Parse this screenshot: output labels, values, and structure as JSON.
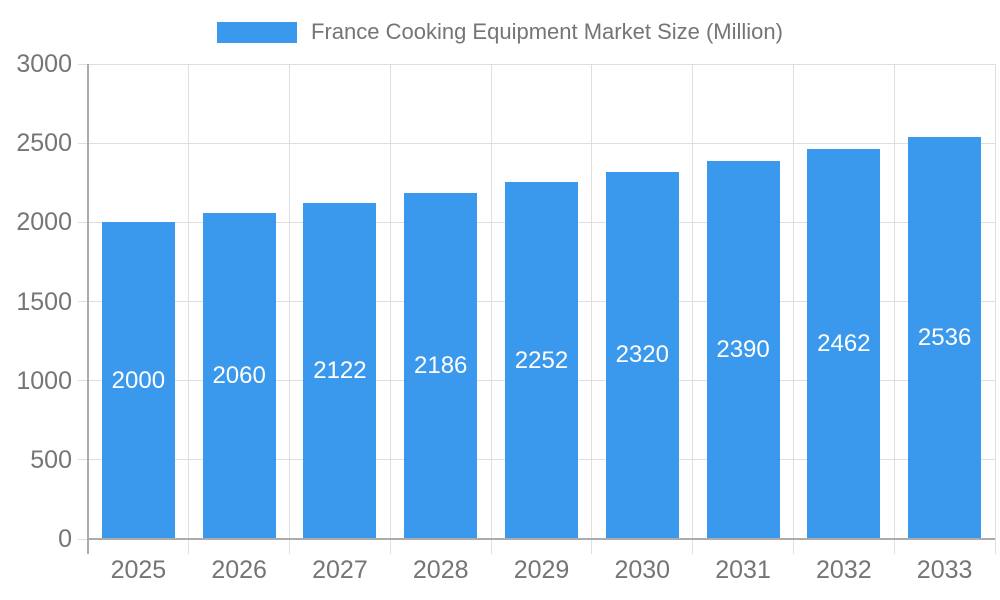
{
  "chart_data": {
    "type": "bar",
    "title": "France Cooking Equipment Market Size (Million)",
    "legend": {
      "position": "top",
      "entries": [
        "France Cooking Equipment Market Size (Million)"
      ]
    },
    "categories": [
      "2025",
      "2026",
      "2027",
      "2028",
      "2029",
      "2030",
      "2031",
      "2032",
      "2033"
    ],
    "values": [
      2000,
      2060,
      2122,
      2186,
      2252,
      2320,
      2390,
      2462,
      2536
    ],
    "xlabel": "",
    "ylabel": "",
    "ylim": [
      0,
      3000
    ],
    "yticks": [
      0,
      500,
      1000,
      1500,
      2000,
      2500,
      3000
    ],
    "grid": true,
    "bar_value_labels": true,
    "colors": {
      "bar": "#3A99EC",
      "grid": "#DFDFDF",
      "axis": "#ABABAB",
      "tick_text": "#757575",
      "legend_text": "#757575",
      "value_label_text": "#FFFFFF",
      "background": "#FFFFFF"
    }
  }
}
